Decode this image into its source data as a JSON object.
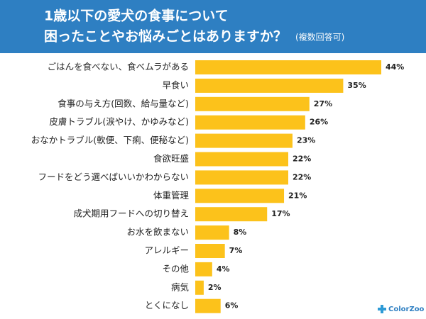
{
  "chart_data": {
    "type": "barh",
    "title": [
      "1歳以下の愛犬の食事について",
      "困ったことやお悩みごとはありますか？"
    ],
    "subtitle": "(複数回答可)",
    "categories": [
      "ごはんを食べない、食べムラがある",
      "早食い",
      "食事の与え方(回数、給与量など)",
      "皮膚トラブル(涙やけ、かゆみなど)",
      "おなかトラブル(軟便、下痢、便秘など)",
      "食欲旺盛",
      "フードをどう選べばいいかわからない",
      "体重管理",
      "成犬期用フードへの切り替え",
      "お水を飲まない",
      "アレルギー",
      "その他",
      "病気",
      "とくになし"
    ],
    "values": [
      44,
      35,
      27,
      26,
      23,
      22,
      22,
      21,
      17,
      8,
      7,
      4,
      2,
      6
    ],
    "value_labels": [
      "44%",
      "35%",
      "27%",
      "26%",
      "23%",
      "22%",
      "22%",
      "21%",
      "17%",
      "8%",
      "7%",
      "4%",
      "2%",
      "6%"
    ],
    "color": "#fcc21b",
    "logo": "ColorZoo"
  }
}
